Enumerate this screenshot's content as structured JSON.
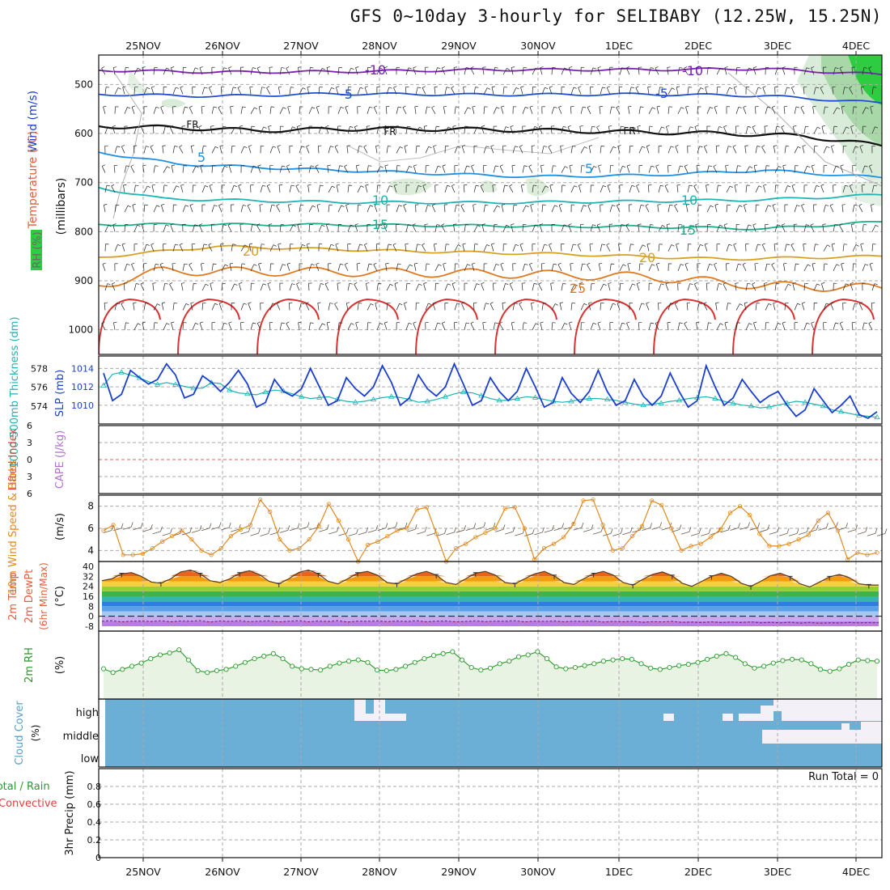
{
  "title": "GFS 0~10day 3-hourly for SELIBABY (12.25W, 15.25N)",
  "dates": [
    "25NOV",
    "26NOV",
    "27NOV",
    "28NOV",
    "29NOV",
    "30NOV",
    "1DEC",
    "2DEC",
    "3DEC",
    "4DEC"
  ],
  "run_total_label": "Run Total = 0",
  "chart_data": [
    {
      "type": "line",
      "panel": "upper-air",
      "ylabel_parts": [
        "RH (%)",
        "Temperature (°C)",
        "Wind (m/s)",
        "(millibars)"
      ],
      "ylim": [
        1050,
        440
      ],
      "yticks": [
        500,
        600,
        700,
        800,
        900,
        1000
      ],
      "isotherms": [
        {
          "label": "-10",
          "levels_x": [
            [
              0.0,
              471
            ],
            [
              0.15,
              475
            ],
            [
              0.3,
              474
            ],
            [
              0.5,
              470
            ],
            [
              0.7,
              470
            ],
            [
              0.85,
              468
            ],
            [
              1.0,
              480
            ]
          ]
        },
        {
          "label": "-5",
          "levels_x": [
            [
              0.0,
              520
            ],
            [
              0.15,
              524
            ],
            [
              0.3,
              519
            ],
            [
              0.5,
              521
            ],
            [
              0.7,
              520
            ],
            [
              0.85,
              523
            ],
            [
              1.0,
              538
            ]
          ]
        },
        {
          "label": "FR",
          "levels_x": [
            [
              0.0,
              585
            ],
            [
              0.1,
              588
            ],
            [
              0.2,
              594
            ],
            [
              0.35,
              590
            ],
            [
              0.5,
              592
            ],
            [
              0.65,
              596
            ],
            [
              0.8,
              600
            ],
            [
              0.9,
              605
            ],
            [
              1.0,
              625
            ]
          ]
        },
        {
          "label": "5",
          "levels_x": [
            [
              0.0,
              638
            ],
            [
              0.1,
              662
            ],
            [
              0.25,
              672
            ],
            [
              0.4,
              680
            ],
            [
              0.55,
              688
            ],
            [
              0.7,
              685
            ],
            [
              0.85,
              675
            ],
            [
              1.0,
              690
            ]
          ]
        },
        {
          "label": "10",
          "levels_x": [
            [
              0.0,
              710
            ],
            [
              0.08,
              733
            ],
            [
              0.3,
              740
            ],
            [
              0.5,
              741
            ],
            [
              0.7,
              738
            ],
            [
              0.85,
              735
            ],
            [
              1.0,
              725
            ]
          ]
        },
        {
          "label": "15",
          "levels_x": [
            [
              0.0,
              785
            ],
            [
              0.3,
              786
            ],
            [
              0.5,
              788
            ],
            [
              0.7,
              790
            ],
            [
              0.85,
              794
            ],
            [
              1.0,
              780
            ]
          ]
        },
        {
          "label": "20",
          "levels_x": [
            [
              0.0,
              852
            ],
            [
              0.15,
              830
            ],
            [
              0.4,
              840
            ],
            [
              0.6,
              846
            ],
            [
              0.8,
              856
            ],
            [
              1.0,
              850
            ]
          ]
        },
        {
          "label": "25",
          "levels_x": [
            [
              0.0,
              910
            ],
            [
              0.08,
              880
            ],
            [
              0.3,
              882
            ],
            [
              0.5,
              885
            ],
            [
              0.7,
              892
            ],
            [
              0.85,
              910
            ],
            [
              1.0,
              915
            ]
          ]
        }
      ],
      "contour_labels": [
        "-10",
        "-5",
        "FR",
        "5",
        "10",
        "15",
        "20",
        "25",
        "10"
      ],
      "rh_colors": [
        "#d9ecd9",
        "#a8d8a8",
        "#2ecc40"
      ]
    },
    {
      "type": "line",
      "panel": "slp-thickness",
      "ylabels": [
        "1000-500mb Thickness (dm)",
        "SLP (mb)"
      ],
      "left_ticks": [
        574,
        576,
        578
      ],
      "right_ticks": [
        1010,
        1012,
        1014
      ],
      "series": [
        {
          "name": "SLP (mb)",
          "color": "#1a3fd0",
          "values": [
            1013.5,
            1010.5,
            1011.2,
            1013.8,
            1013.0,
            1012.3,
            1012.8,
            1014.5,
            1013.3,
            1010.8,
            1011.2,
            1013.2,
            1012.5,
            1011.5,
            1012.5,
            1013.8,
            1012.3,
            1009.8,
            1010.3,
            1012.8,
            1011.5,
            1011.0,
            1011.8,
            1014.0,
            1012.0,
            1010.0,
            1010.5,
            1013.0,
            1011.8,
            1011.0,
            1012.0,
            1014.3,
            1012.5,
            1010.0,
            1010.8,
            1013.3,
            1011.8,
            1011.0,
            1012.0,
            1014.5,
            1012.3,
            1010.0,
            1010.5,
            1013.0,
            1011.5,
            1010.5,
            1011.5,
            1014.0,
            1012.0,
            1009.8,
            1010.3,
            1013.0,
            1011.3,
            1010.3,
            1011.5,
            1013.8,
            1011.5,
            1010.0,
            1010.5,
            1012.8,
            1011.0,
            1010.0,
            1011.0,
            1013.5,
            1011.5,
            1009.8,
            1010.5,
            1014.3,
            1012.0,
            1010.0,
            1010.8,
            1012.8,
            1011.5,
            1010.3,
            1011.0,
            1011.5,
            1010.0,
            1008.8,
            1009.5,
            1011.8,
            1010.5,
            1009.2,
            1010.0,
            1011.0,
            1009.0,
            1008.6,
            1009.3
          ]
        },
        {
          "name": "1000-500mb Thickness (dm)",
          "color": "#1fb3b3",
          "values": [
            576.2,
            577.4,
            577.6,
            577.3,
            577.0,
            576.6,
            576.3,
            576.5,
            576.3,
            576.1,
            575.9,
            575.9,
            576.5,
            576.4,
            575.7,
            575.4,
            575.3,
            575.2,
            575.5,
            575.7,
            575.6,
            575.3,
            575.0,
            574.8,
            574.9,
            575.0,
            574.7,
            574.5,
            574.4,
            574.5,
            574.7,
            574.9,
            575.0,
            574.9,
            574.7,
            574.4,
            574.5,
            574.7,
            575.0,
            575.3,
            575.5,
            575.4,
            575.1,
            574.8,
            574.6,
            574.6,
            574.8,
            575.0,
            574.9,
            574.7,
            574.5,
            574.4,
            574.5,
            574.7,
            574.8,
            574.8,
            574.7,
            574.6,
            574.4,
            574.2,
            574.1,
            574.2,
            574.3,
            574.5,
            574.6,
            574.8,
            574.9,
            575.0,
            574.8,
            574.5,
            574.3,
            574.1,
            574.0,
            573.8,
            573.9,
            574.1,
            574.3,
            574.5,
            574.4,
            574.2,
            574.0,
            573.6,
            573.4,
            573.2,
            573.0,
            572.9,
            572.8
          ]
        }
      ]
    },
    {
      "type": "line",
      "panel": "cape-li",
      "ylabels": [
        "Lifted Index",
        "CAPE (J/kg)"
      ],
      "yticks": [
        -6,
        -3,
        0,
        3,
        6
      ],
      "series": [
        {
          "name": "Lifted Index",
          "color": "#e06060",
          "values": []
        }
      ]
    },
    {
      "type": "line",
      "panel": "10m-wind",
      "ylabels": [
        "10m Wind Speed & Barbs",
        "(m/s)"
      ],
      "yticks": [
        4,
        6,
        8
      ],
      "ylim": [
        3,
        9
      ],
      "series": [
        {
          "name": "10m Wind Speed",
          "color": "#e08a1e",
          "values": [
            5.8,
            6.3,
            3.6,
            3.6,
            3.7,
            4.2,
            4.8,
            5.3,
            5.8,
            5.0,
            4.0,
            3.6,
            4.2,
            5.3,
            5.9,
            6.3,
            8.6,
            7.5,
            5.0,
            4.0,
            4.2,
            5.0,
            6.2,
            8.2,
            6.7,
            5.0,
            3.0,
            4.5,
            4.8,
            5.3,
            5.8,
            6.0,
            7.7,
            7.9,
            5.5,
            3.0,
            4.2,
            4.6,
            5.2,
            5.6,
            6.0,
            7.8,
            7.9,
            6.0,
            3.2,
            4.2,
            4.6,
            5.2,
            6.4,
            8.5,
            8.6,
            6.3,
            4.0,
            4.2,
            5.3,
            6.2,
            8.5,
            8.1,
            6.0,
            4.0,
            4.4,
            4.6,
            5.2,
            5.9,
            7.4,
            8.0,
            7.2,
            5.5,
            4.4,
            4.4,
            4.6,
            5.0,
            5.4,
            6.7,
            7.4,
            5.8,
            3.2,
            3.8,
            3.6,
            3.8
          ]
        }
      ]
    },
    {
      "type": "area",
      "panel": "2m-temp",
      "ylabels": [
        "2m Temp",
        "2m DewPt",
        "(6hr Min/Max)",
        "(°C)"
      ],
      "yticks": [
        40,
        32,
        24,
        16,
        8,
        0,
        -8
      ],
      "ylim": [
        -8,
        40
      ],
      "series": [
        {
          "name": "2m Temp",
          "values": [
            28.5,
            30.0,
            34.0,
            35.0,
            32.0,
            27.5,
            26.5,
            30.0,
            35.5,
            37.0,
            34.0,
            28.5,
            27.0,
            30.0,
            34.5,
            36.5,
            33.5,
            28.0,
            26.0,
            30.0,
            35.0,
            37.0,
            34.0,
            28.0,
            26.0,
            30.0,
            34.5,
            36.0,
            33.0,
            27.0,
            26.0,
            30.0,
            34.0,
            36.0,
            33.0,
            27.0,
            25.5,
            30.0,
            34.5,
            36.0,
            33.0,
            27.0,
            26.0,
            30.0,
            34.0,
            36.0,
            32.5,
            27.0,
            25.5,
            30.0,
            34.0,
            36.0,
            33.0,
            27.0,
            25.0,
            29.5,
            33.5,
            35.5,
            32.5,
            26.5,
            24.0,
            28.0,
            32.0,
            34.5,
            32.0,
            26.5,
            24.0,
            28.0,
            32.5,
            34.5,
            31.5,
            26.0,
            23.5,
            27.5,
            31.5,
            33.5,
            31.0,
            26.0,
            25.0,
            25.0
          ]
        },
        {
          "name": "2m DewPt",
          "values": [
            -4.0,
            -3.5,
            -4.5,
            -4.0,
            -3.8,
            -4.2,
            -3.6,
            -4.4,
            -3.8,
            -4.0,
            -3.5,
            -4.6,
            -3.8,
            -4.1,
            -3.6,
            -4.3,
            -3.9,
            -3.7,
            -4.5,
            -4.0,
            -3.6,
            -4.4,
            -3.8,
            -4.2,
            -3.5,
            -4.6,
            -3.9,
            -4.0,
            -3.7,
            -4.3,
            -3.8,
            -4.1,
            -3.6,
            -4.4,
            -3.9,
            -3.8,
            -4.5,
            -4.1,
            -3.7,
            -4.3,
            -3.9,
            -4.0,
            -3.6,
            -4.5,
            -3.9,
            -4.1,
            -3.8,
            -4.4,
            -3.9,
            -4.2,
            -3.7,
            -4.6,
            -4.1,
            -4.4,
            -4.0,
            -4.8,
            -4.3,
            -4.5,
            -4.1,
            -4.9,
            -4.6,
            -5.0,
            -4.4,
            -5.1,
            -4.6,
            -5.0,
            -4.5,
            -5.2,
            -4.9,
            -5.3,
            -4.8,
            -5.5,
            -5.0,
            -5.6,
            -5.2,
            -5.4,
            -5.0,
            -5.3,
            -5.1,
            -5.2
          ]
        }
      ]
    },
    {
      "type": "line",
      "panel": "2m-rh",
      "ylabels": [
        "2m RH",
        "(%)"
      ],
      "ylim": [
        0,
        100
      ],
      "series": [
        {
          "name": "2m RH",
          "color": "#2a9a2a",
          "values": [
            48,
            42,
            47,
            52,
            57,
            64,
            70,
            73,
            78,
            62,
            45,
            42,
            45,
            47,
            52,
            58,
            64,
            68,
            72,
            64,
            52,
            48,
            47,
            46,
            52,
            57,
            60,
            62,
            58,
            46,
            45,
            47,
            52,
            58,
            64,
            69,
            72,
            75,
            62,
            50,
            46,
            49,
            56,
            60,
            67,
            70,
            75,
            64,
            51,
            48,
            50,
            53,
            56,
            60,
            62,
            64,
            63,
            56,
            49,
            47,
            50,
            53,
            55,
            58,
            63,
            68,
            72,
            66,
            56,
            49,
            52,
            57,
            61,
            63,
            62,
            56,
            47,
            44,
            48,
            55,
            62,
            61,
            60
          ]
        }
      ]
    },
    {
      "type": "heatmap",
      "panel": "cloud-cover",
      "ylabels": [
        "Cloud Cover",
        "(%)"
      ],
      "levels": [
        "high",
        "middle",
        "low"
      ],
      "colors": {
        "cover": "#6baed6",
        "clear": "#f4f0f7"
      }
    },
    {
      "type": "bar",
      "panel": "precip",
      "ylabels": [
        "Total / Rain",
        "Convective",
        "3hr Precip (mm)"
      ],
      "yticks": [
        0,
        0.2,
        0.4,
        0.6,
        0.8
      ],
      "ylim": [
        0,
        1
      ],
      "series": [
        {
          "name": "3hr Precip (mm)",
          "values": []
        }
      ]
    }
  ]
}
